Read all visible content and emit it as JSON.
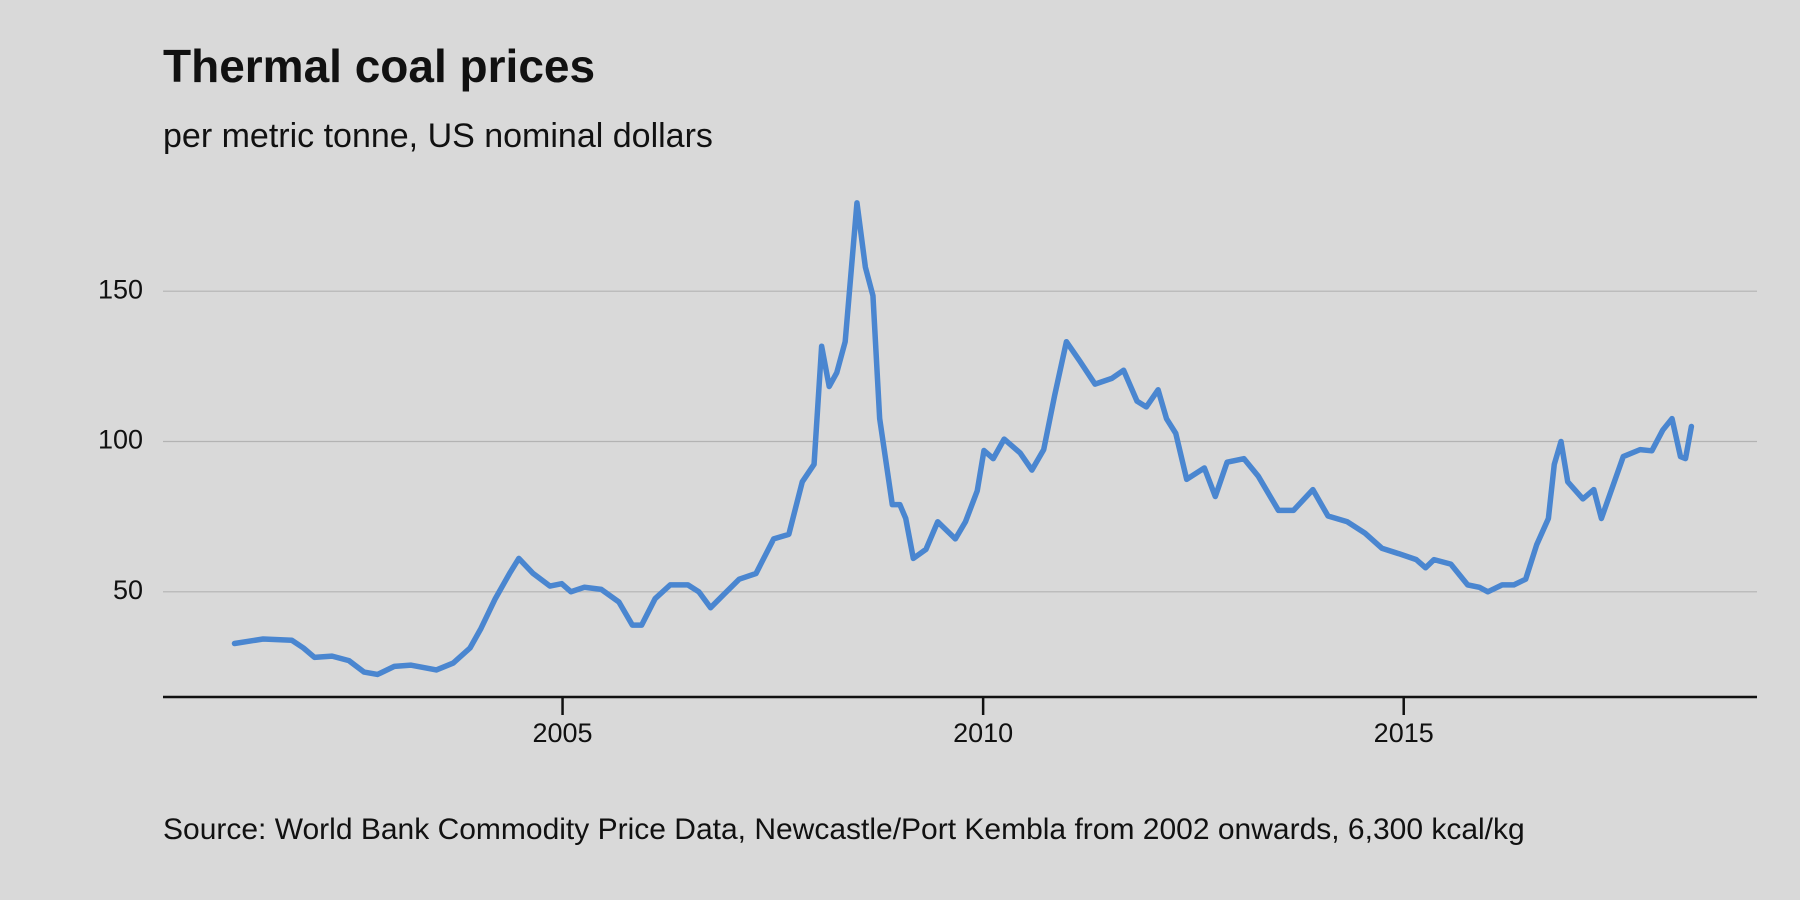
{
  "chart_data": {
    "type": "line",
    "title": "Thermal coal prices",
    "subtitle": "per metric tonne, US nominal dollars",
    "source": "Source: World Bank Commodity Price Data, Newcastle/Port Kembla from 2002 onwards, 6,300 kcal/kg",
    "x": [
      2001.1,
      2001.44,
      2001.78,
      2001.92,
      2002.05,
      2002.26,
      2002.46,
      2002.64,
      2002.8,
      2003.0,
      2003.2,
      2003.5,
      2003.7,
      2003.9,
      2004.03,
      2004.2,
      2004.37,
      2004.48,
      2004.65,
      2004.85,
      2004.99,
      2005.1,
      2005.26,
      2005.46,
      2005.67,
      2005.83,
      2005.94,
      2006.1,
      2006.28,
      2006.49,
      2006.62,
      2006.76,
      2006.92,
      2007.1,
      2007.3,
      2007.51,
      2007.69,
      2007.85,
      2007.99,
      2008.08,
      2008.17,
      2008.26,
      2008.36,
      2008.5,
      2008.6,
      2008.69,
      2008.77,
      2008.92,
      2009.01,
      2009.08,
      2009.17,
      2009.32,
      2009.46,
      2009.6,
      2009.67,
      2009.79,
      2009.93,
      2010.01,
      2010.12,
      2010.25,
      2010.44,
      2010.58,
      2010.72,
      2010.85,
      2010.99,
      2011.15,
      2011.33,
      2011.53,
      2011.67,
      2011.83,
      2011.94,
      2012.08,
      2012.18,
      2012.29,
      2012.42,
      2012.63,
      2012.76,
      2012.9,
      2013.1,
      2013.27,
      2013.51,
      2013.69,
      2013.92,
      2014.1,
      2014.33,
      2014.54,
      2014.74,
      2014.95,
      2015.15,
      2015.26,
      2015.36,
      2015.56,
      2015.76,
      2015.9,
      2016.0,
      2016.17,
      2016.31,
      2016.45,
      2016.58,
      2016.72,
      2016.79,
      2016.87,
      2016.95,
      2017.13,
      2017.26,
      2017.35,
      2017.61,
      2017.81,
      2017.95,
      2018.08,
      2018.19,
      2018.29,
      2018.35,
      2018.42
    ],
    "values": [
      32.8,
      34.3,
      33.9,
      31.3,
      28.2,
      28.6,
      27.1,
      23.3,
      22.5,
      25.2,
      25.6,
      24.0,
      26.3,
      31.3,
      37.8,
      47.7,
      56.1,
      61.1,
      56.1,
      51.9,
      52.7,
      50.0,
      51.5,
      50.8,
      46.6,
      38.9,
      38.9,
      47.7,
      52.3,
      52.3,
      50.0,
      44.7,
      49.2,
      54.2,
      56.1,
      67.6,
      69.1,
      86.6,
      92.4,
      131.7,
      118.3,
      122.9,
      133.2,
      179.4,
      158.0,
      148.5,
      107.6,
      79.0,
      79.0,
      74.4,
      61.1,
      64.1,
      73.3,
      69.5,
      67.6,
      73.3,
      83.6,
      97.0,
      94.3,
      100.8,
      96.2,
      90.5,
      97.3,
      115.3,
      133.2,
      126.7,
      119.1,
      121.0,
      123.7,
      113.4,
      111.5,
      117.2,
      107.6,
      102.7,
      87.4,
      91.2,
      81.7,
      93.1,
      94.3,
      88.5,
      77.1,
      77.1,
      84.0,
      75.2,
      73.3,
      69.5,
      64.5,
      62.6,
      60.7,
      58.0,
      60.7,
      59.2,
      52.3,
      51.5,
      50.0,
      52.3,
      52.3,
      54.2,
      65.6,
      74.4,
      92.4,
      100.0,
      86.6,
      80.9,
      84.0,
      74.4,
      95.0,
      97.3,
      96.9,
      103.8,
      107.6,
      95.0,
      94.3,
      105.0
    ],
    "color": "#4a86d0",
    "xlim": [
      2000.25,
      2019.2
    ],
    "xticks": [
      2005,
      2010,
      2015
    ],
    "ylim": [
      15,
      185
    ],
    "yticks": [
      50,
      100,
      150
    ],
    "grid": true
  }
}
